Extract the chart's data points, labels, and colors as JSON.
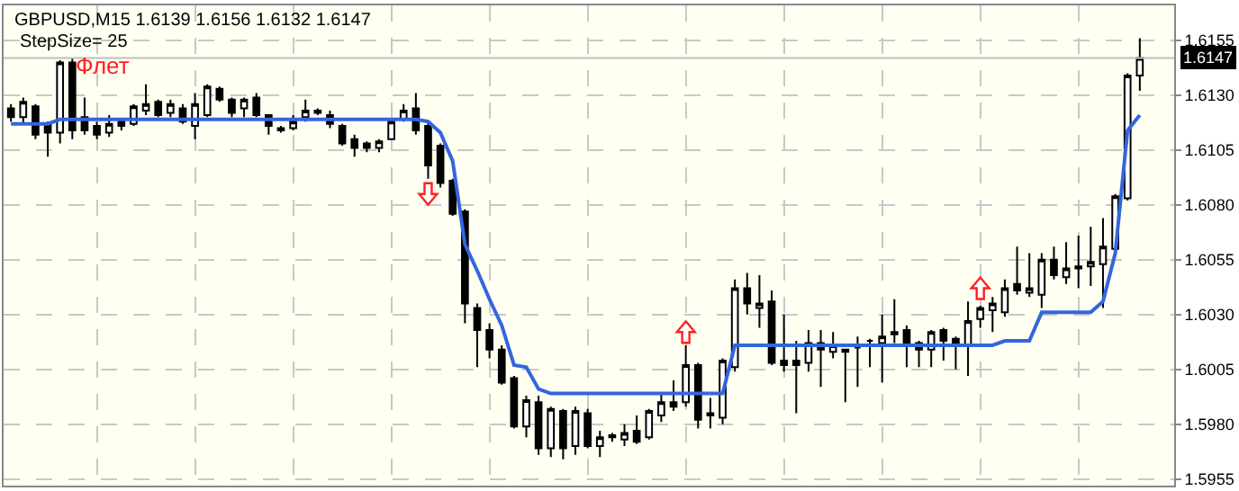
{
  "chart_data": {
    "type": "candlestick",
    "title": "GBPUSD,M15 1.6139 1.6156 1.6132 1.6147",
    "subtitle": "StepSize= 25",
    "annotations": [
      "Флет"
    ],
    "categories": [
      null,
      null,
      null,
      null,
      null,
      null,
      null,
      null,
      null,
      null,
      null,
      null,
      null,
      null,
      null,
      null,
      null,
      null,
      null,
      null,
      null,
      null,
      null,
      null,
      null,
      null,
      null,
      null,
      null,
      null,
      null,
      null,
      null,
      null,
      null,
      null,
      null,
      null,
      null,
      null,
      null,
      null,
      null,
      null,
      null,
      null,
      null,
      null,
      null,
      null,
      null,
      null,
      null,
      null,
      null,
      null,
      null,
      null,
      null,
      null,
      null,
      null,
      null,
      null,
      null,
      null,
      null,
      null,
      null,
      null,
      null,
      null,
      null,
      null,
      null,
      null,
      null,
      null,
      null,
      null,
      null,
      null,
      null,
      null,
      null,
      null,
      null,
      null,
      null,
      null,
      null,
      null,
      null
    ],
    "ohlc": [
      [
        1.6124,
        1.6126,
        1.6118,
        1.612
      ],
      [
        1.612,
        1.6129,
        1.6117,
        1.6127
      ],
      [
        1.6125,
        1.6126,
        1.611,
        1.6112
      ],
      [
        1.6117,
        1.6118,
        1.6102,
        1.6113
      ],
      [
        1.6113,
        1.6146,
        1.6108,
        1.6145
      ],
      [
        1.6145,
        1.6147,
        1.611,
        1.6114
      ],
      [
        1.612,
        1.6129,
        1.6112,
        1.6114
      ],
      [
        1.6116,
        1.6118,
        1.611,
        1.6112
      ],
      [
        1.6113,
        1.6121,
        1.6111,
        1.6117
      ],
      [
        1.6118,
        1.6119,
        1.6114,
        1.6116
      ],
      [
        1.6117,
        1.6126,
        1.6116,
        1.6125
      ],
      [
        1.6123,
        1.6135,
        1.6121,
        1.6126
      ],
      [
        1.6127,
        1.6128,
        1.612,
        1.6121
      ],
      [
        1.6122,
        1.6128,
        1.612,
        1.6126
      ],
      [
        1.6124,
        1.6126,
        1.6117,
        1.6118
      ],
      [
        1.6116,
        1.6131,
        1.611,
        1.6126
      ],
      [
        1.6121,
        1.6135,
        1.612,
        1.6134
      ],
      [
        1.6133,
        1.6134,
        1.6127,
        1.6128
      ],
      [
        1.6128,
        1.6129,
        1.612,
        1.6122
      ],
      [
        1.6124,
        1.6129,
        1.612,
        1.6128
      ],
      [
        1.6129,
        1.6131,
        1.612,
        1.6121
      ],
      [
        1.6121,
        1.6121,
        1.6112,
        1.6116
      ],
      [
        1.6114,
        1.6116,
        1.6113,
        1.6115
      ],
      [
        1.6115,
        1.6121,
        1.6114,
        1.6118
      ],
      [
        1.612,
        1.6128,
        1.6118,
        1.6123
      ],
      [
        1.6122,
        1.6124,
        1.6121,
        1.6123
      ],
      [
        1.6121,
        1.6123,
        1.6115,
        1.6117
      ],
      [
        1.6116,
        1.6117,
        1.6107,
        1.6108
      ],
      [
        1.611,
        1.6112,
        1.6102,
        1.6106
      ],
      [
        1.6108,
        1.6109,
        1.6104,
        1.6106
      ],
      [
        1.6106,
        1.611,
        1.6104,
        1.6109
      ],
      [
        1.611,
        1.6119,
        1.611,
        1.6118
      ],
      [
        1.6119,
        1.6126,
        1.6118,
        1.6123
      ],
      [
        1.6124,
        1.6131,
        1.6112,
        1.6114
      ],
      [
        1.6116,
        1.6118,
        1.6092,
        1.6098
      ],
      [
        1.6107,
        1.6108,
        1.6088,
        1.609
      ],
      [
        1.6091,
        1.6092,
        1.6075,
        1.6076
      ],
      [
        1.6077,
        1.6078,
        1.6026,
        1.6035
      ],
      [
        1.6033,
        1.6035,
        1.6006,
        1.6023
      ],
      [
        1.6023,
        1.6026,
        1.601,
        1.6014
      ],
      [
        1.6014,
        1.6016,
        1.5998,
        1.5999
      ],
      [
        1.6001,
        1.6002,
        1.5978,
        1.5979
      ],
      [
        1.5979,
        1.5993,
        1.5974,
        1.5991
      ],
      [
        1.599,
        1.5993,
        1.5966,
        1.5969
      ],
      [
        1.5969,
        1.5988,
        1.5965,
        1.5987
      ],
      [
        1.5986,
        1.5987,
        1.5964,
        1.5969
      ],
      [
        1.597,
        1.5988,
        1.5966,
        1.5986
      ],
      [
        1.5985,
        1.5987,
        1.5969,
        1.597
      ],
      [
        1.597,
        1.5977,
        1.5965,
        1.5974
      ],
      [
        1.5974,
        1.5976,
        1.5972,
        1.5975
      ],
      [
        1.5973,
        1.598,
        1.597,
        1.5976
      ],
      [
        1.5977,
        1.5984,
        1.5971,
        1.5972
      ],
      [
        1.5974,
        1.5987,
        1.5973,
        1.5986
      ],
      [
        1.5984,
        1.5994,
        1.5981,
        1.599
      ],
      [
        1.599,
        1.6,
        1.5986,
        1.5988
      ],
      [
        1.599,
        1.6016,
        1.5988,
        1.6007
      ],
      [
        1.6007,
        1.6008,
        1.5978,
        1.5982
      ],
      [
        1.5984,
        1.5992,
        1.5978,
        1.5985
      ],
      [
        1.5983,
        1.601,
        1.598,
        1.6009
      ],
      [
        1.6006,
        1.6046,
        1.6004,
        1.6042
      ],
      [
        1.6042,
        1.6049,
        1.603,
        1.6035
      ],
      [
        1.6033,
        1.6048,
        1.6024,
        1.6035
      ],
      [
        1.6036,
        1.6041,
        1.6007,
        1.6008
      ],
      [
        1.6009,
        1.603,
        1.6004,
        1.6007
      ],
      [
        1.6009,
        1.6018,
        1.5985,
        1.6007
      ],
      [
        1.6008,
        1.6023,
        1.6004,
        1.6017
      ],
      [
        1.6017,
        1.6023,
        1.5997,
        1.6014
      ],
      [
        1.6013,
        1.6022,
        1.601,
        1.6016
      ],
      [
        1.6014,
        1.6014,
        1.599,
        1.6013
      ],
      [
        1.6015,
        1.602,
        1.5997,
        1.6015
      ],
      [
        1.6018,
        1.6019,
        1.6006,
        1.6018
      ],
      [
        1.6017,
        1.603,
        1.5999,
        1.602
      ],
      [
        1.6021,
        1.6037,
        1.6017,
        1.6022
      ],
      [
        1.6023,
        1.6025,
        1.6006,
        1.6016
      ],
      [
        1.6017,
        1.6018,
        1.6006,
        1.6014
      ],
      [
        1.6014,
        1.6023,
        1.6006,
        1.6022
      ],
      [
        1.6023,
        1.6024,
        1.6009,
        1.6018
      ],
      [
        1.6019,
        1.602,
        1.6005,
        1.6016
      ],
      [
        1.6016,
        1.6036,
        1.6002,
        1.6027
      ],
      [
        1.6028,
        1.6034,
        1.6024,
        1.6033
      ],
      [
        1.6032,
        1.6038,
        1.6022,
        1.6035
      ],
      [
        1.6031,
        1.6046,
        1.6029,
        1.6042
      ],
      [
        1.6044,
        1.6061,
        1.6039,
        1.6041
      ],
      [
        1.604,
        1.6058,
        1.6038,
        1.6042
      ],
      [
        1.6039,
        1.6058,
        1.6033,
        1.6055
      ],
      [
        1.6055,
        1.6061,
        1.6046,
        1.6048
      ],
      [
        1.6047,
        1.6063,
        1.6044,
        1.6051
      ],
      [
        1.6051,
        1.6066,
        1.6042,
        1.6052
      ],
      [
        1.6052,
        1.607,
        1.6043,
        1.6054
      ],
      [
        1.6053,
        1.6074,
        1.6033,
        1.6061
      ],
      [
        1.606,
        1.6085,
        1.6057,
        1.6084
      ],
      [
        1.6083,
        1.614,
        1.6082,
        1.6139
      ],
      [
        1.6139,
        1.6156,
        1.6132,
        1.6147
      ]
    ],
    "series": [
      {
        "type": "line",
        "color": "#3366dd",
        "values": [
          1.6117,
          1.6117,
          1.6117,
          1.6117,
          1.6119,
          1.6119,
          1.6119,
          1.6119,
          1.6119,
          1.6119,
          1.6119,
          1.6119,
          1.6119,
          1.6119,
          1.6119,
          1.6119,
          1.6119,
          1.6119,
          1.6119,
          1.6119,
          1.6119,
          1.6119,
          1.6119,
          1.6119,
          1.6119,
          1.6119,
          1.6119,
          1.6119,
          1.6119,
          1.6119,
          1.6119,
          1.6119,
          1.6119,
          1.6119,
          1.6118,
          1.6113,
          1.61,
          1.6062,
          1.605,
          1.6037,
          1.6025,
          1.6007,
          1.6006,
          1.5996,
          1.5994,
          1.5994,
          1.5994,
          1.5994,
          1.5994,
          1.5994,
          1.5994,
          1.5994,
          1.5994,
          1.5994,
          1.5994,
          1.5994,
          1.5994,
          1.5994,
          1.5994,
          1.6016,
          1.6016,
          1.6016,
          1.6016,
          1.6016,
          1.6016,
          1.6016,
          1.6016,
          1.6016,
          1.6016,
          1.6016,
          1.6016,
          1.6016,
          1.6016,
          1.6016,
          1.6016,
          1.6016,
          1.6016,
          1.6016,
          1.6016,
          1.6016,
          1.6016,
          1.6018,
          1.6018,
          1.6018,
          1.6031,
          1.6031,
          1.6031,
          1.6031,
          1.6031,
          1.6036,
          1.6058,
          1.6114,
          1.6121
        ]
      }
    ],
    "ylim": [
      1.5952,
      1.6171
    ],
    "yticks": [
      1.5955,
      {
        "value": 1.598,
        "label": "1.5980"
      },
      1.6005,
      {
        "value": 1.603,
        "label": "1.6030"
      },
      1.6055,
      {
        "value": 1.608,
        "label": "1.6080"
      },
      1.6105,
      {
        "value": 1.613,
        "label": "1.6130"
      },
      1.6155
    ],
    "ref_lines": [
      {
        "axis": "y",
        "value": 1.6147,
        "label": "1.6147",
        "color": "#c0c0c0"
      }
    ],
    "grid": true,
    "tick_labels": "y"
  }
}
